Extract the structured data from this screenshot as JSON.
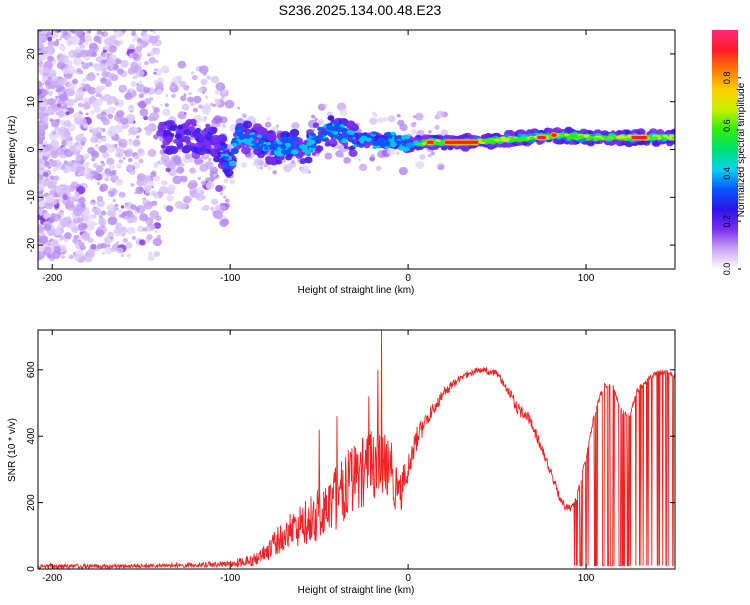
{
  "title": "S236.2025.134.00.48.E23",
  "colorbar": {
    "label": "Normalized spectral amplitude",
    "ticks": [
      "0.0",
      "0.2",
      "0.4",
      "0.6",
      "0.8"
    ],
    "tick_values": [
      0.0,
      0.2,
      0.4,
      0.6,
      0.8
    ],
    "range": [
      0,
      1
    ],
    "colormap": [
      "#ffffff",
      "#c9a5f5",
      "#7a2cf0",
      "#2a14e8",
      "#0a55ff",
      "#00d4f0",
      "#00e070",
      "#30ee10",
      "#c8f000",
      "#ffd000",
      "#ff7a00",
      "#ff1a2a",
      "#ff2a7a"
    ]
  },
  "chart_data": [
    {
      "type": "heatmap",
      "xlabel": "Height of straight line (km)",
      "ylabel": "Frequency (Hz)",
      "xlim": [
        -208,
        150
      ],
      "ylim": [
        -25,
        25
      ],
      "xticks": [
        -200,
        -100,
        0,
        100
      ],
      "xtick_labels": [
        "-200",
        "-100",
        "0",
        "100"
      ],
      "yticks": [
        -20,
        -10,
        0,
        10,
        20
      ],
      "ytick_labels": [
        "-20",
        "-10",
        "0",
        "10",
        "20"
      ],
      "grid": false,
      "trace_center_hz": [
        [
          -208,
          2
        ],
        [
          -150,
          2
        ],
        [
          -120,
          3
        ],
        [
          -110,
          2
        ],
        [
          -100,
          -3
        ],
        [
          -95,
          3
        ],
        [
          -85,
          2
        ],
        [
          -75,
          0
        ],
        [
          -65,
          1
        ],
        [
          -58,
          0
        ],
        [
          -50,
          3
        ],
        [
          -40,
          4
        ],
        [
          -30,
          2
        ],
        [
          -20,
          2
        ],
        [
          -10,
          2
        ],
        [
          0,
          1
        ],
        [
          10,
          1.5
        ],
        [
          30,
          1.5
        ],
        [
          50,
          2
        ],
        [
          70,
          2.5
        ],
        [
          85,
          3
        ],
        [
          100,
          2.5
        ],
        [
          120,
          2.5
        ],
        [
          150,
          2.5
        ]
      ],
      "peak_amplitude_segments": [
        {
          "x_from": 10,
          "x_to": 15,
          "f": 1.5
        },
        {
          "x_from": 20,
          "x_to": 40,
          "f": 1.5
        },
        {
          "x_from": 72,
          "x_to": 78,
          "f": 2.5
        },
        {
          "x_from": 80,
          "x_to": 84,
          "f": 3.0
        },
        {
          "x_from": 125,
          "x_to": 135,
          "f": 2.5
        }
      ]
    },
    {
      "type": "line",
      "xlabel": "Height of straight line (km)",
      "ylabel": "SNR (10 * v/v)",
      "xlim": [
        -208,
        150
      ],
      "ylim": [
        0,
        720
      ],
      "xticks": [
        -200,
        -100,
        0,
        100
      ],
      "xtick_labels": [
        "-200",
        "-100",
        "0",
        "100"
      ],
      "yticks": [
        0,
        200,
        400,
        600
      ],
      "ytick_labels": [
        "0",
        "200",
        "400",
        "600"
      ],
      "grid": false,
      "series": [
        {
          "color": "#ee2222",
          "envelope": [
            [
              -208,
              15
            ],
            [
              -150,
              15
            ],
            [
              -120,
              20
            ],
            [
              -100,
              25
            ],
            [
              -90,
              40
            ],
            [
              -80,
              80
            ],
            [
              -70,
              150
            ],
            [
              -60,
              200
            ],
            [
              -50,
              250
            ],
            [
              -40,
              320
            ],
            [
              -30,
              380
            ],
            [
              -20,
              420
            ],
            [
              -10,
              400
            ],
            [
              -5,
              280
            ],
            [
              0,
              350
            ],
            [
              5,
              430
            ],
            [
              10,
              470
            ],
            [
              20,
              550
            ],
            [
              30,
              590
            ],
            [
              40,
              610
            ],
            [
              50,
              600
            ],
            [
              58,
              540
            ],
            [
              62,
              500
            ],
            [
              68,
              470
            ],
            [
              75,
              380
            ],
            [
              80,
              310
            ],
            [
              85,
              230
            ],
            [
              88,
              200
            ],
            [
              92,
              190
            ],
            [
              95,
              230
            ],
            [
              100,
              350
            ],
            [
              105,
              480
            ],
            [
              110,
              560
            ],
            [
              115,
              560
            ],
            [
              120,
              480
            ],
            [
              125,
              470
            ],
            [
              128,
              540
            ],
            [
              135,
              580
            ],
            [
              140,
              600
            ],
            [
              145,
              600
            ],
            [
              150,
              590
            ]
          ],
          "noise": [
            [
              -208,
              15
            ],
            [
              -150,
              12
            ],
            [
              -120,
              15
            ],
            [
              -100,
              20
            ],
            [
              -90,
              35
            ],
            [
              -80,
              60
            ],
            [
              -60,
              130
            ],
            [
              -40,
              200
            ],
            [
              -20,
              220
            ],
            [
              -10,
              180
            ],
            [
              0,
              90
            ],
            [
              10,
              50
            ],
            [
              30,
              20
            ],
            [
              50,
              20
            ],
            [
              60,
              40
            ],
            [
              75,
              30
            ],
            [
              90,
              20
            ],
            [
              100,
              20
            ],
            [
              110,
              15
            ],
            [
              130,
              15
            ],
            [
              150,
              15
            ]
          ],
          "spikes": [
            {
              "x": -15,
              "y": 720
            },
            {
              "x": -17,
              "y": 600
            },
            {
              "x": -22,
              "y": 520
            },
            {
              "x": -40,
              "y": 460
            },
            {
              "x": -50,
              "y": 420
            },
            {
              "x": 95,
              "y": 10
            },
            {
              "x": 100,
              "y": 10
            },
            {
              "x": 105,
              "y": 10
            },
            {
              "x": 110,
              "y": 10
            },
            {
              "x": 115,
              "y": 10
            },
            {
              "x": 120,
              "y": 10
            },
            {
              "x": 125,
              "y": 10
            },
            {
              "x": 130,
              "y": 10
            },
            {
              "x": 135,
              "y": 10
            },
            {
              "x": 140,
              "y": 10
            },
            {
              "x": 145,
              "y": 10
            }
          ]
        }
      ]
    }
  ]
}
